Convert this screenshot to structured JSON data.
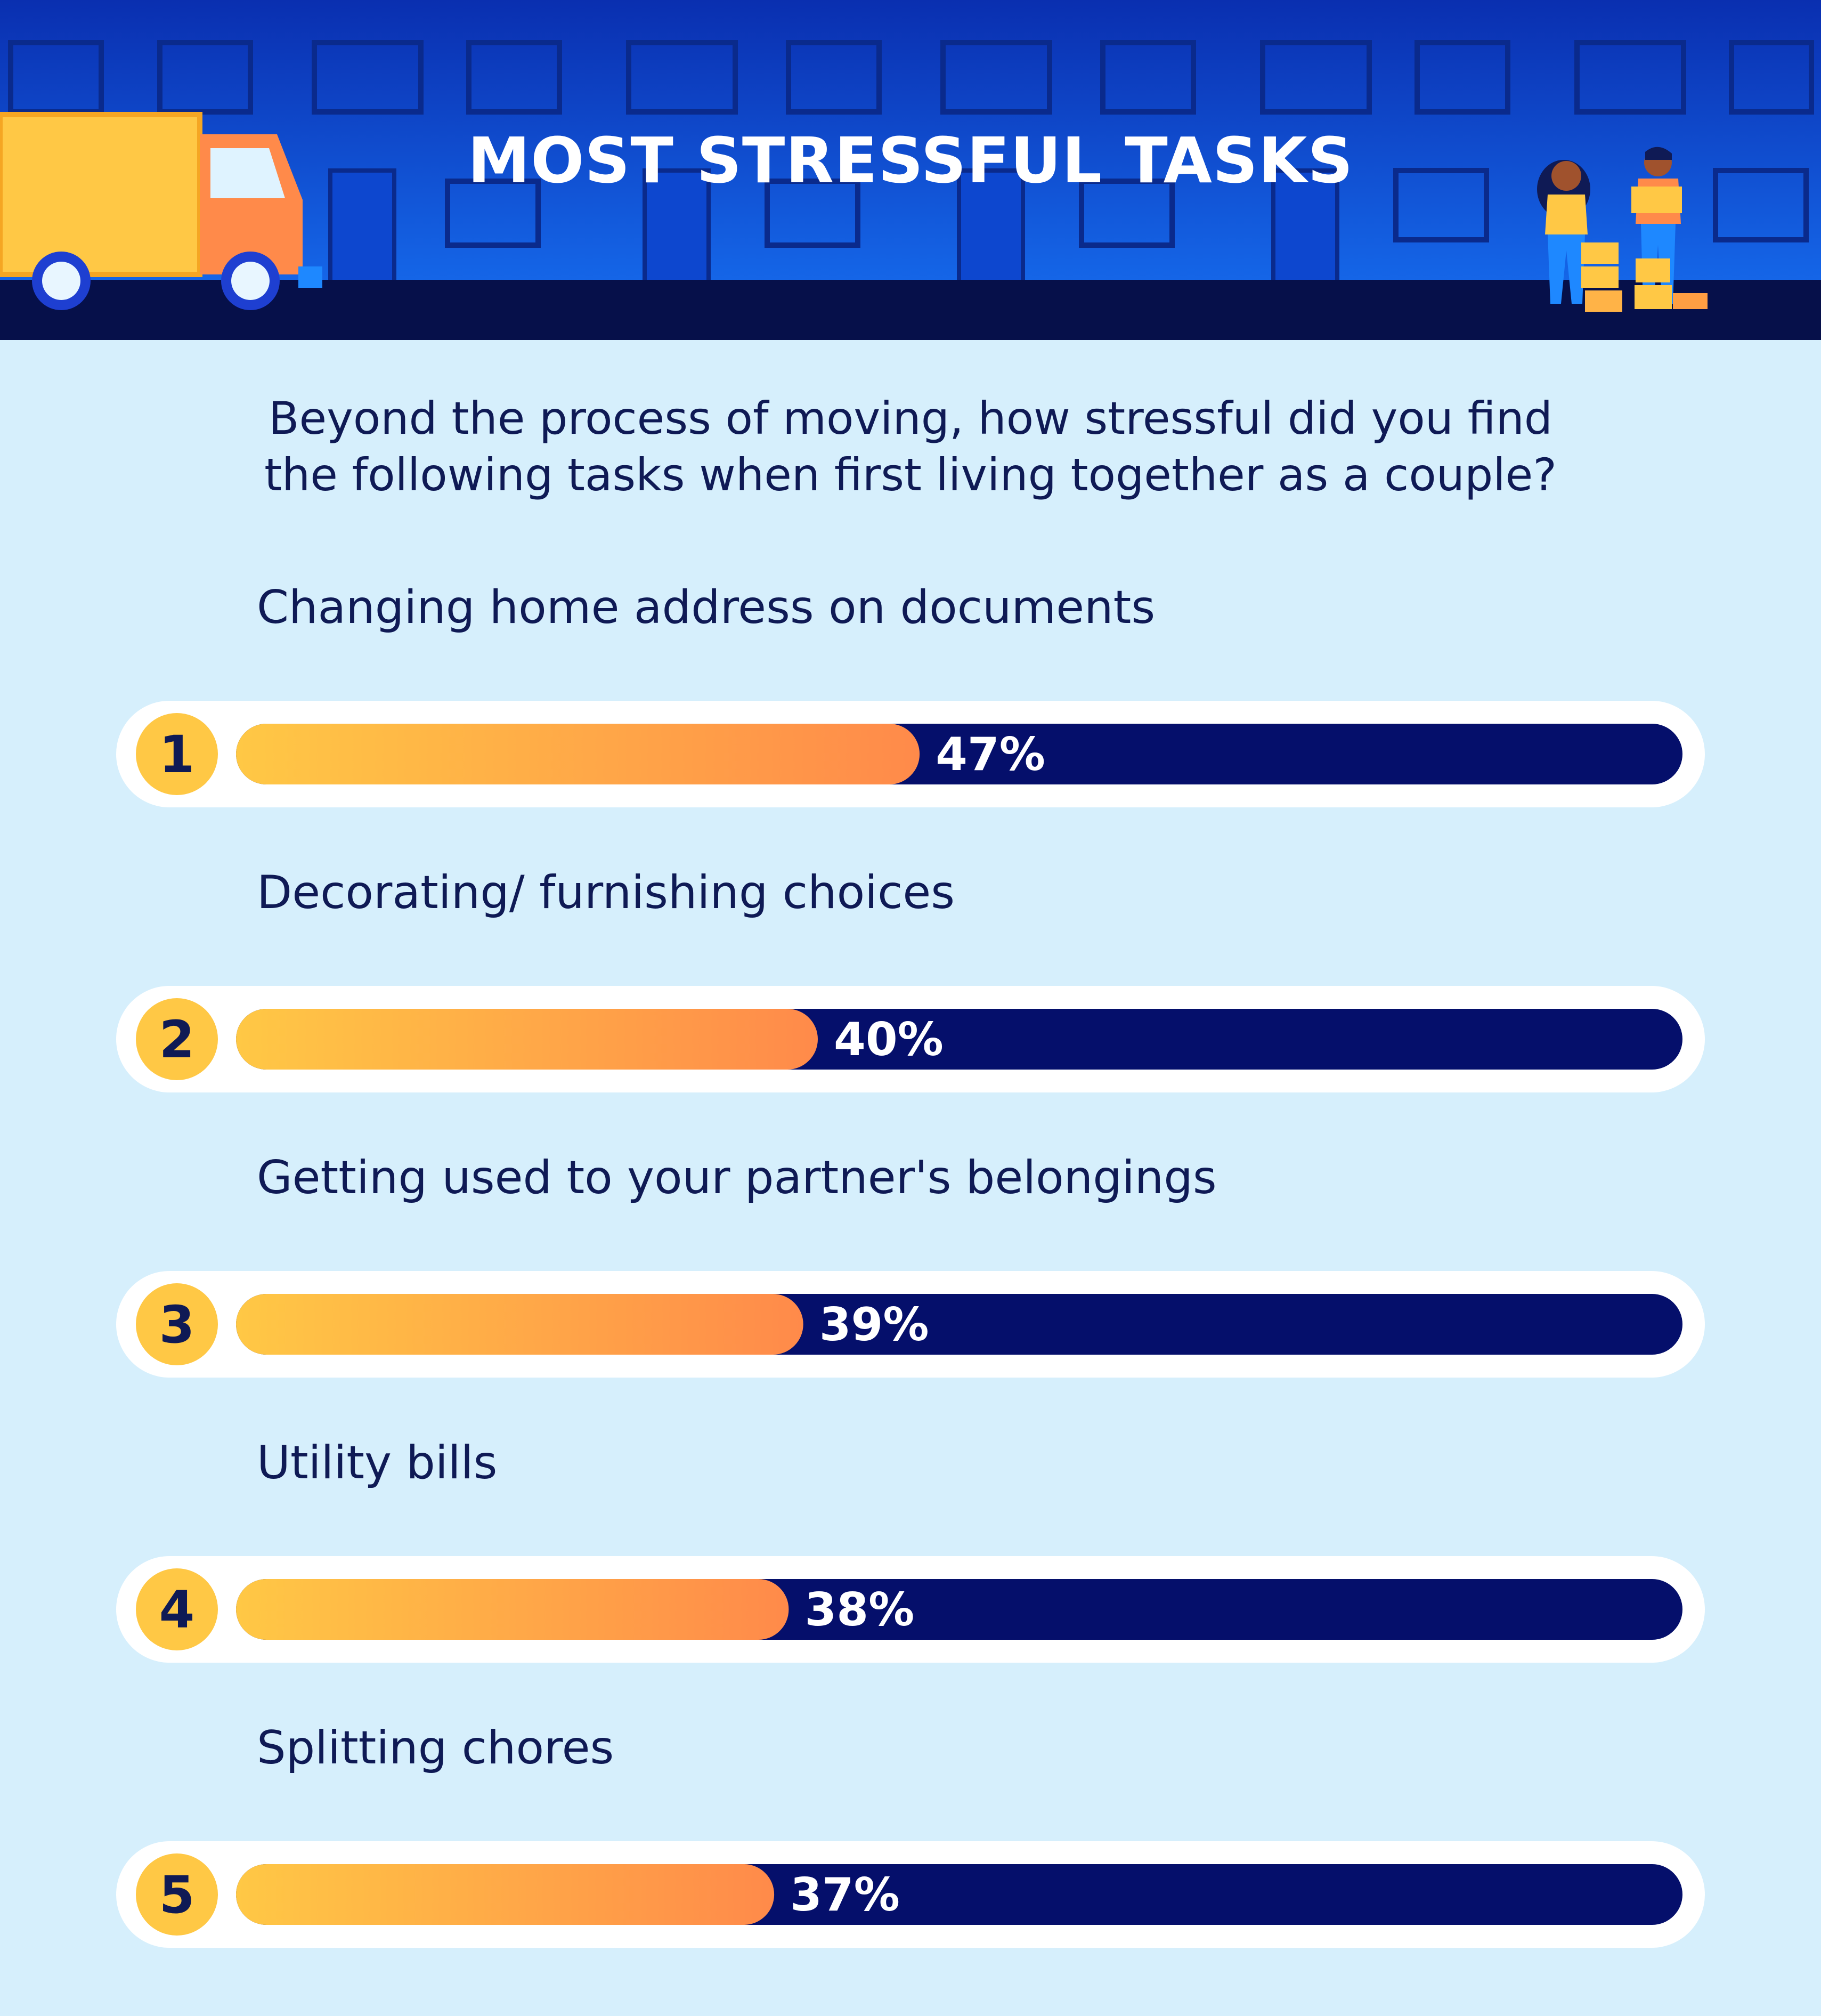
{
  "header": {
    "title": "MOST STRESSFUL TASKS"
  },
  "question": {
    "line1": "Beyond the process of moving, how stressful did you find",
    "line2": "the following tasks when first living together as a couple?"
  },
  "colors": {
    "background": "#d6effc",
    "header_blue": "#0a3fc4",
    "header_dark": "#06104a",
    "track": "#050f6b",
    "bar_start": "#ffc845",
    "bar_end": "#ff8a4a",
    "rank_circle": "#ffc845",
    "rank_text": "#0f1a55"
  },
  "chart_data": {
    "type": "bar",
    "orientation": "horizontal",
    "unit": "%",
    "xlim": [
      0,
      100
    ],
    "categories": [
      "Changing home address on documents",
      "Decorating/ furnishing choices",
      "Getting used to your partner's belongings",
      "Utility bills",
      "Splitting chores"
    ],
    "ranks": [
      "1",
      "2",
      "3",
      "4",
      "5"
    ],
    "values": [
      47,
      40,
      39,
      38,
      37
    ],
    "value_labels": [
      "47%",
      "40%",
      "39%",
      "38%",
      "37%"
    ]
  }
}
